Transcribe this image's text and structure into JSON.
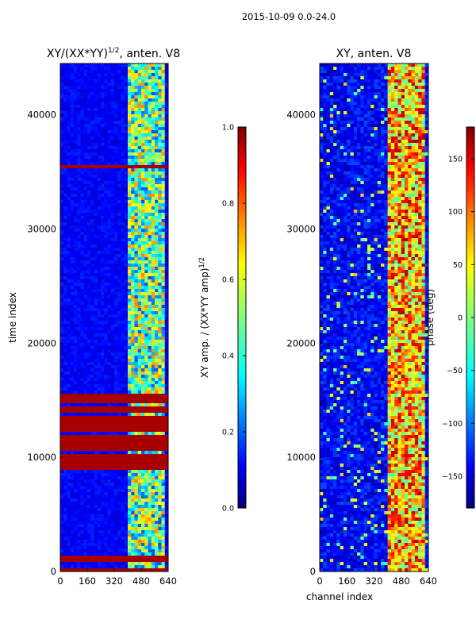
{
  "figure": {
    "suptitle": "2015-10-09 0.0-24.0"
  },
  "colors": {
    "jet_low": "#00007f",
    "jet_mid_blue": "#0000ff",
    "jet_cyan": "#00ffff",
    "jet_yellow": "#ffff00",
    "jet_red": "#ff0000",
    "jet_high": "#7f0000"
  },
  "chart_data": [
    {
      "id": "panel_left",
      "type": "heatmap",
      "title_main": "XY/(XX*YY)",
      "title_exp": "1/2",
      "title_rest": ", anten. V8",
      "xlabel": "",
      "ylabel": "time index",
      "xlim": [
        0,
        640
      ],
      "ylim": [
        0,
        44500
      ],
      "xticks": [
        0,
        160,
        320,
        480,
        640
      ],
      "yticks": [
        0,
        10000,
        20000,
        30000,
        40000
      ],
      "colormap": "jet",
      "colorbar": {
        "label_main": "XY amp. / (XX*YY amp)",
        "label_exp": "1/2",
        "range": [
          0.0,
          1.0
        ],
        "ticks": [
          "0.0",
          "0.2",
          "0.4",
          "0.6",
          "0.8",
          "1.0"
        ]
      },
      "signal_band_channels": [
        400,
        640
      ],
      "full_scale_rows": [
        [
          0,
          1500
        ],
        [
          9000,
          15500
        ],
        [
          35300,
          35700
        ]
      ]
    },
    {
      "id": "panel_right",
      "type": "heatmap",
      "title_main": "XY, anten. V8",
      "xlabel": "channel index",
      "ylabel": "",
      "xlim": [
        0,
        640
      ],
      "ylim": [
        0,
        44500
      ],
      "xticks": [
        0,
        160,
        320,
        480,
        640
      ],
      "yticks": [
        0,
        10000,
        20000,
        30000,
        40000
      ],
      "colormap": "jet",
      "colorbar": {
        "label_main": "phase (deg)",
        "range": [
          -180,
          180
        ],
        "ticks": [
          "150",
          "100",
          "50",
          "0",
          "−50",
          "−100",
          "−150"
        ]
      },
      "signal_band_channels": [
        400,
        640
      ]
    }
  ]
}
